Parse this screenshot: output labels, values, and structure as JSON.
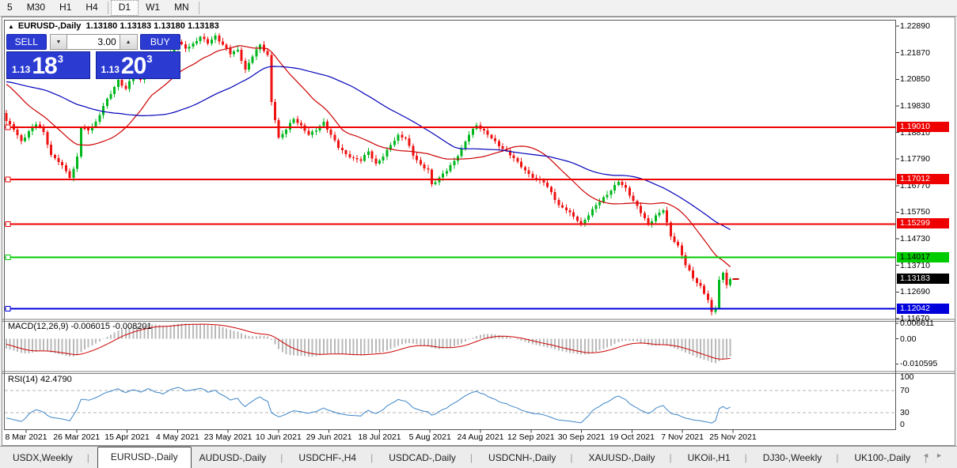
{
  "toolbar": {
    "timeframes": [
      "5",
      "M30",
      "H1",
      "H4",
      "D1",
      "W1",
      "MN"
    ],
    "active": "D1"
  },
  "chart": {
    "collapse_icon": "▲",
    "title": "EURUSD-,Daily",
    "ohlc": "1.13180 1.13183 1.13180 1.13183",
    "trade_panel": {
      "sell_label": "SELL",
      "buy_label": "BUY",
      "volume": "3.00",
      "down_icon": "▼",
      "up_icon": "▲",
      "sell_price": {
        "prefix": "1.13",
        "big": "18",
        "pip": "3"
      },
      "buy_price": {
        "prefix": "1.13",
        "big": "20",
        "pip": "3"
      }
    }
  },
  "chart_data": {
    "type": "candlestick",
    "symbol": "EURUSD-",
    "timeframe": "Daily",
    "ylim": [
      1.116,
      1.231
    ],
    "y_ticks": [
      "1.22890",
      "1.21870",
      "1.20850",
      "1.19830",
      "1.18810",
      "1.17790",
      "1.16770",
      "1.15750",
      "1.14730",
      "1.13710",
      "1.12690",
      "1.11670"
    ],
    "x_labels": [
      "8 Mar 2021",
      "26 Mar 2021",
      "15 Apr 2021",
      "4 May 2021",
      "23 May 2021",
      "10 Jun 2021",
      "29 Jun 2021",
      "18 Jul 2021",
      "5 Aug 2021",
      "24 Aug 2021",
      "12 Sep 2021",
      "30 Sep 2021",
      "19 Oct 2021",
      "7 Nov 2021",
      "25 Nov 2021"
    ],
    "levels": [
      {
        "price": 1.1901,
        "label": "1.19010",
        "color": "#ee0000",
        "text": "#ffffff"
      },
      {
        "price": 1.17012,
        "label": "1.17012",
        "color": "#ee0000",
        "text": "#ffffff"
      },
      {
        "price": 1.15299,
        "label": "1.15299",
        "color": "#ee0000",
        "text": "#ffffff"
      },
      {
        "price": 1.14017,
        "label": "1.14017",
        "color": "#00cc00",
        "text": "#000000"
      },
      {
        "price": 1.12042,
        "label": "1.12042",
        "color": "#0000dd",
        "text": "#ffffff"
      }
    ],
    "current_price": {
      "price": 1.13183,
      "label": "1.13183",
      "color": "#000000",
      "text": "#ffffff"
    },
    "price_path": [
      [
        0,
        1.1925
      ],
      [
        2,
        1.1892
      ],
      [
        4,
        1.1848
      ],
      [
        6,
        1.1885
      ],
      [
        8,
        1.1912
      ],
      [
        10,
        1.1882
      ],
      [
        12,
        1.1795
      ],
      [
        14,
        1.1768
      ],
      [
        16,
        1.1732
      ],
      [
        17,
        1.1706
      ],
      [
        18,
        1.1742
      ],
      [
        19,
        1.1788
      ],
      [
        20,
        1.1898
      ],
      [
        22,
        1.1888
      ],
      [
        24,
        1.1922
      ],
      [
        26,
        1.1982
      ],
      [
        28,
        1.2028
      ],
      [
        30,
        1.2082
      ],
      [
        32,
        1.2048
      ],
      [
        34,
        1.2102
      ],
      [
        36,
        1.2082
      ],
      [
        38,
        1.2152
      ],
      [
        40,
        1.2122
      ],
      [
        42,
        1.2108
      ],
      [
        44,
        1.2182
      ],
      [
        46,
        1.2228
      ],
      [
        48,
        1.2202
      ],
      [
        50,
        1.2222
      ],
      [
        52,
        1.2248
      ],
      [
        54,
        1.2222
      ],
      [
        56,
        1.2252
      ],
      [
        58,
        1.2218
      ],
      [
        60,
        1.2182
      ],
      [
        62,
        1.2198
      ],
      [
        64,
        1.2122
      ],
      [
        66,
        1.2172
      ],
      [
        68,
        1.2218
      ],
      [
        70,
        1.2178
      ],
      [
        71,
        1.1998
      ],
      [
        72,
        1.1928
      ],
      [
        73,
        1.1862
      ],
      [
        75,
        1.1892
      ],
      [
        77,
        1.1932
      ],
      [
        79,
        1.1908
      ],
      [
        81,
        1.1872
      ],
      [
        83,
        1.1888
      ],
      [
        85,
        1.1922
      ],
      [
        87,
        1.1872
      ],
      [
        89,
        1.1822
      ],
      [
        91,
        1.1798
      ],
      [
        93,
        1.1782
      ],
      [
        95,
        1.1772
      ],
      [
        97,
        1.1808
      ],
      [
        99,
        1.1762
      ],
      [
        101,
        1.1788
      ],
      [
        103,
        1.1832
      ],
      [
        105,
        1.1872
      ],
      [
        107,
        1.1858
      ],
      [
        109,
        1.1792
      ],
      [
        111,
        1.1758
      ],
      [
        113,
        1.1738
      ],
      [
        114,
        1.1682
      ],
      [
        116,
        1.1708
      ],
      [
        118,
        1.1732
      ],
      [
        120,
        1.1772
      ],
      [
        122,
        1.1818
      ],
      [
        124,
        1.1872
      ],
      [
        126,
        1.1908
      ],
      [
        128,
        1.1888
      ],
      [
        130,
        1.1858
      ],
      [
        132,
        1.1828
      ],
      [
        134,
        1.1812
      ],
      [
        136,
        1.1782
      ],
      [
        138,
        1.1748
      ],
      [
        140,
        1.1722
      ],
      [
        142,
        1.1702
      ],
      [
        144,
        1.1688
      ],
      [
        146,
        1.1652
      ],
      [
        148,
        1.1602
      ],
      [
        150,
        1.1582
      ],
      [
        152,
        1.1558
      ],
      [
        154,
        1.1532
      ],
      [
        156,
        1.1562
      ],
      [
        158,
        1.1602
      ],
      [
        160,
        1.1632
      ],
      [
        162,
        1.1658
      ],
      [
        164,
        1.1692
      ],
      [
        166,
        1.1668
      ],
      [
        168,
        1.1618
      ],
      [
        170,
        1.1572
      ],
      [
        172,
        1.1528
      ],
      [
        174,
        1.1562
      ],
      [
        176,
        1.1582
      ],
      [
        178,
        1.1482
      ],
      [
        180,
        1.1448
      ],
      [
        182,
        1.1372
      ],
      [
        184,
        1.1322
      ],
      [
        186,
        1.1292
      ],
      [
        188,
        1.1238
      ],
      [
        189,
        1.1192
      ],
      [
        190,
        1.1208
      ],
      [
        191,
        1.1316
      ],
      [
        192,
        1.1342
      ],
      [
        193,
        1.1296
      ],
      [
        194,
        1.1318
      ]
    ],
    "macd": {
      "label": "MACD(12,26,9) -0.006015 -0.008201",
      "axis": [
        "0.006611",
        "0.00",
        "-0.010595"
      ],
      "params": [
        12,
        26,
        9
      ]
    },
    "rsi": {
      "label": "RSI(14) 42.4790",
      "axis": [
        "100",
        "70",
        "30",
        "0"
      ],
      "levels": [
        70,
        30
      ],
      "period": 14
    },
    "colors": {
      "bull": "#00b71d",
      "bear": "#ee1212",
      "ma_fast": "#cc0000",
      "ma_slow": "#0000bb",
      "macd_hist": "#b9b9b9",
      "macd_signal": "#cc0000",
      "rsi_line": "#3d85c8",
      "rsi_level_dash": "#b5b5b5"
    }
  },
  "tabs": {
    "items": [
      "USDX,Weekly",
      "EURUSD-,Daily",
      "AUDUSD-,Daily",
      "USDCHF-,H4",
      "USDCAD-,Daily",
      "USDCNH-,Daily",
      "XAUUSD-,Daily",
      "UKOil-,H1",
      "DJ30-,Weekly",
      "UK100-,Daily"
    ],
    "active_index": 1,
    "nav_left": "◄",
    "nav_right": "►"
  }
}
